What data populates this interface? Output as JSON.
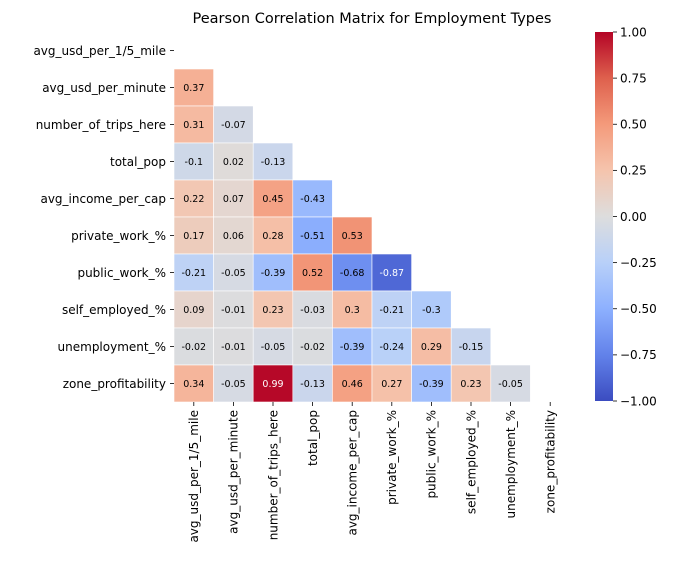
{
  "chart_data": {
    "type": "heatmap",
    "title": "Pearson Correlation Matrix for Employment Types",
    "variables": [
      "avg_usd_per_1/5_mile",
      "avg_usd_per_minute",
      "number_of_trips_here",
      "total_pop",
      "avg_income_per_cap",
      "private_work_%",
      "public_work_%",
      "self_employed_%",
      "unemployment_%",
      "zone_profitability"
    ],
    "mask": "upper-triangle-and-diagonal",
    "values": [
      [
        null,
        null,
        null,
        null,
        null,
        null,
        null,
        null,
        null,
        null
      ],
      [
        0.37,
        null,
        null,
        null,
        null,
        null,
        null,
        null,
        null,
        null
      ],
      [
        0.31,
        -0.07,
        null,
        null,
        null,
        null,
        null,
        null,
        null,
        null
      ],
      [
        -0.1,
        0.02,
        -0.13,
        null,
        null,
        null,
        null,
        null,
        null,
        null
      ],
      [
        0.22,
        0.07,
        0.45,
        -0.43,
        null,
        null,
        null,
        null,
        null,
        null
      ],
      [
        0.17,
        0.06,
        0.28,
        -0.51,
        0.53,
        null,
        null,
        null,
        null,
        null
      ],
      [
        -0.21,
        -0.05,
        -0.39,
        0.52,
        -0.68,
        -0.87,
        null,
        null,
        null,
        null
      ],
      [
        0.09,
        -0.01,
        0.23,
        -0.03,
        0.3,
        -0.21,
        -0.3,
        null,
        null,
        null
      ],
      [
        -0.02,
        -0.01,
        -0.05,
        -0.02,
        -0.39,
        -0.24,
        0.29,
        -0.15,
        null,
        null
      ],
      [
        0.34,
        -0.05,
        0.99,
        -0.13,
        0.46,
        0.27,
        -0.39,
        0.23,
        -0.05,
        null
      ]
    ],
    "colormap": "coolwarm",
    "colorbar": {
      "range": [
        -1.0,
        1.0
      ],
      "ticks": [
        "1.00",
        "0.75",
        "0.50",
        "0.25",
        "0.00",
        "−0.25",
        "−0.50",
        "−0.75",
        "−1.00"
      ]
    }
  }
}
